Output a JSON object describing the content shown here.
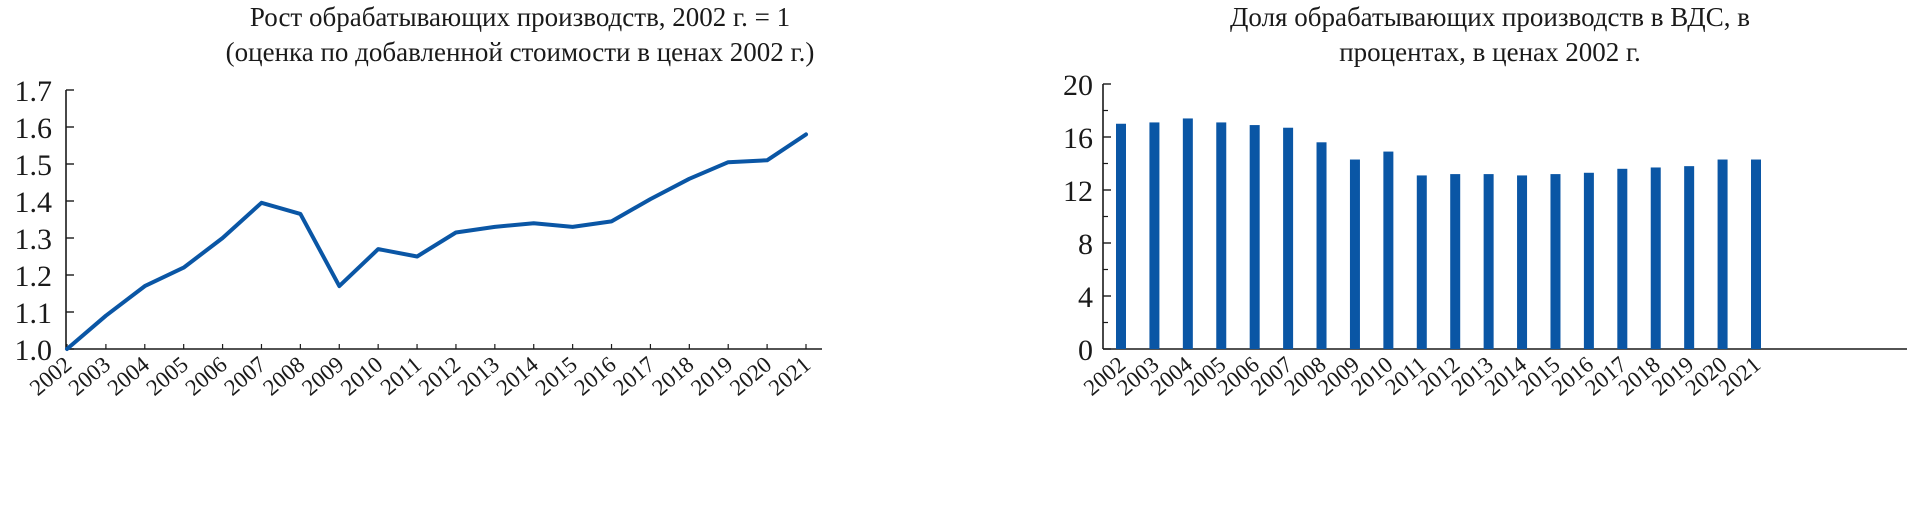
{
  "chart_data": [
    {
      "type": "line",
      "title_lines": [
        "Рост обрабатывающих производств, 2002 г. = 1",
        "(оценка по добавленной стоимости в ценах 2002 г.)"
      ],
      "categories": [
        "2002",
        "2003",
        "2004",
        "2005",
        "2006",
        "2007",
        "2008",
        "2009",
        "2010",
        "2011",
        "2012",
        "2013",
        "2014",
        "2015",
        "2016",
        "2017",
        "2018",
        "2019",
        "2020",
        "2021"
      ],
      "series": [
        {
          "values": [
            1.0,
            1.09,
            1.17,
            1.22,
            1.3,
            1.395,
            1.365,
            1.17,
            1.27,
            1.25,
            1.315,
            1.33,
            1.34,
            1.33,
            1.345,
            1.405,
            1.46,
            1.505,
            1.51,
            1.58
          ]
        }
      ],
      "yticks": [
        "1.0",
        "1.1",
        "1.2",
        "1.3",
        "1.4",
        "1.5",
        "1.6",
        "1.7"
      ],
      "ylim": [
        1.0,
        1.7
      ],
      "line_color": "#0a56a5",
      "grid": false
    },
    {
      "type": "bar",
      "title_lines": [
        "Доля обрабатывающих производств в ВДС, в",
        "процентах, в ценах 2002 г."
      ],
      "categories": [
        "2002",
        "2003",
        "2004",
        "2005",
        "2006",
        "2007",
        "2008",
        "2009",
        "2010",
        "2011",
        "2012",
        "2013",
        "2014",
        "2015",
        "2016",
        "2017",
        "2018",
        "2019",
        "2020",
        "2021"
      ],
      "series": [
        {
          "values": [
            17.0,
            17.1,
            17.4,
            17.1,
            16.9,
            16.7,
            15.6,
            14.3,
            14.9,
            13.1,
            13.2,
            13.2,
            13.1,
            13.2,
            13.3,
            13.6,
            13.7,
            13.8,
            14.3,
            14.3
          ]
        }
      ],
      "yticks": [
        "0",
        "4",
        "8",
        "12",
        "16",
        "20"
      ],
      "ylim": [
        0,
        20
      ],
      "bar_color": "#0a56a5",
      "grid": false
    }
  ]
}
